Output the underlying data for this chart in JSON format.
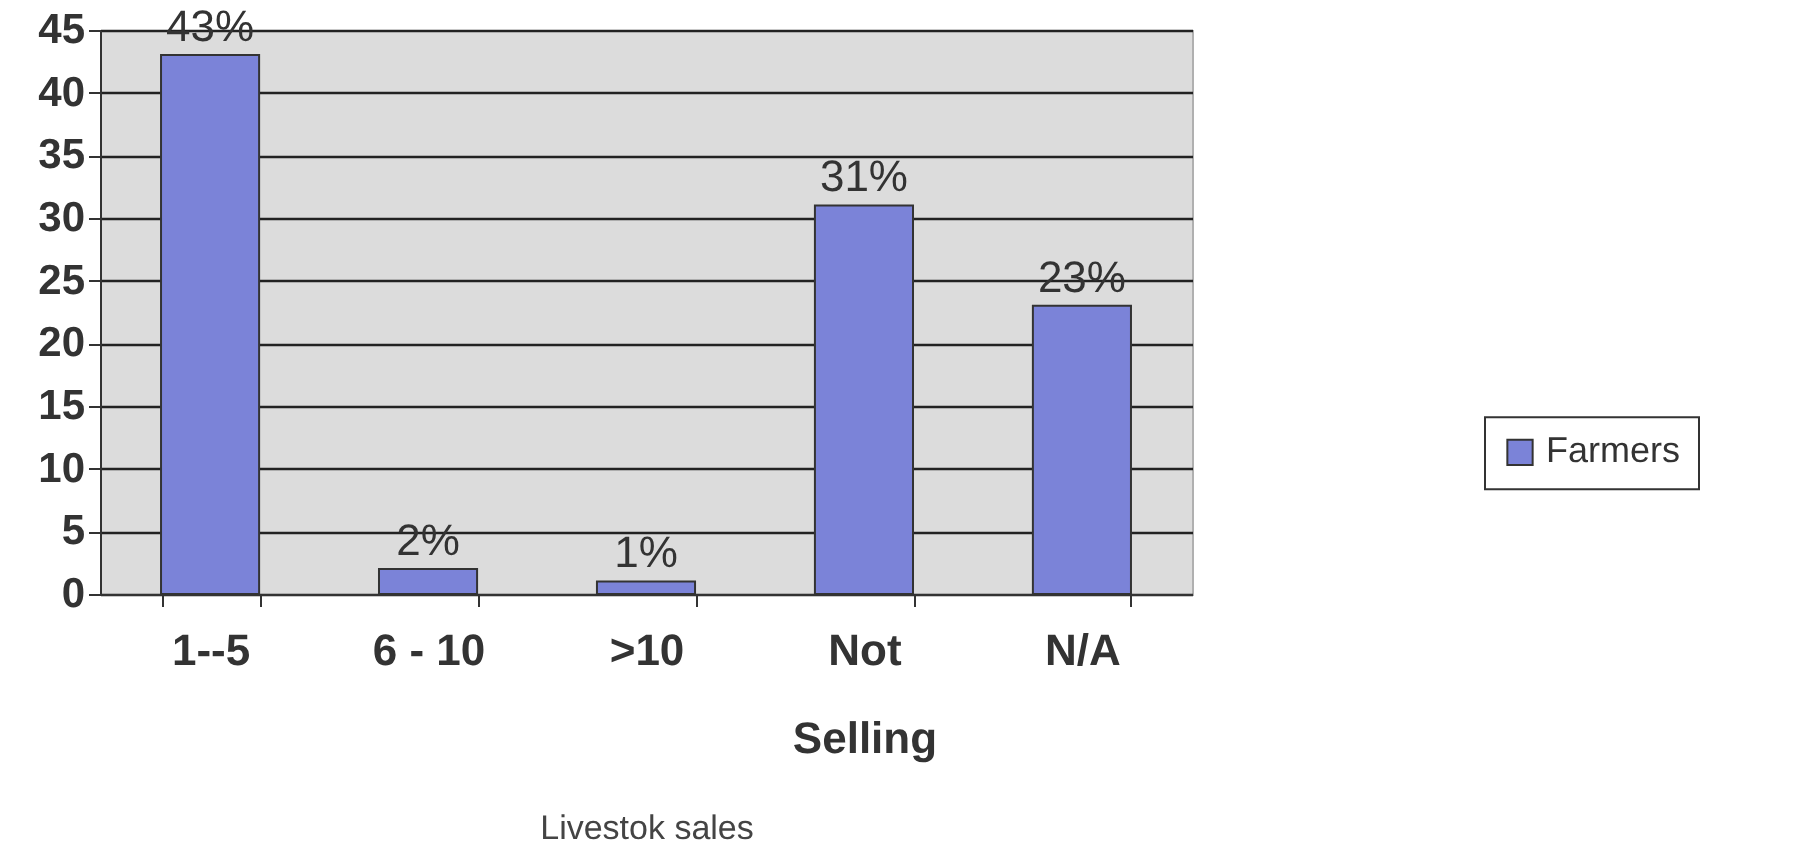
{
  "chart_data": {
    "type": "bar",
    "xlabel": "Livestok sales",
    "categories": [
      "1--5",
      "6 - 10",
      ">10",
      "Not Selling",
      "N/A"
    ],
    "series": [
      {
        "name": "Farmers",
        "color": "#7b83d8",
        "values": [
          43,
          2,
          1,
          31,
          23
        ],
        "value_labels": [
          "43%",
          "2%",
          "1%",
          "31%",
          "23%"
        ]
      }
    ],
    "ylim": [
      0,
      45
    ],
    "yticks": [
      0,
      5,
      10,
      15,
      20,
      25,
      30,
      35,
      40,
      45
    ],
    "grid": "y",
    "legend": "right"
  }
}
